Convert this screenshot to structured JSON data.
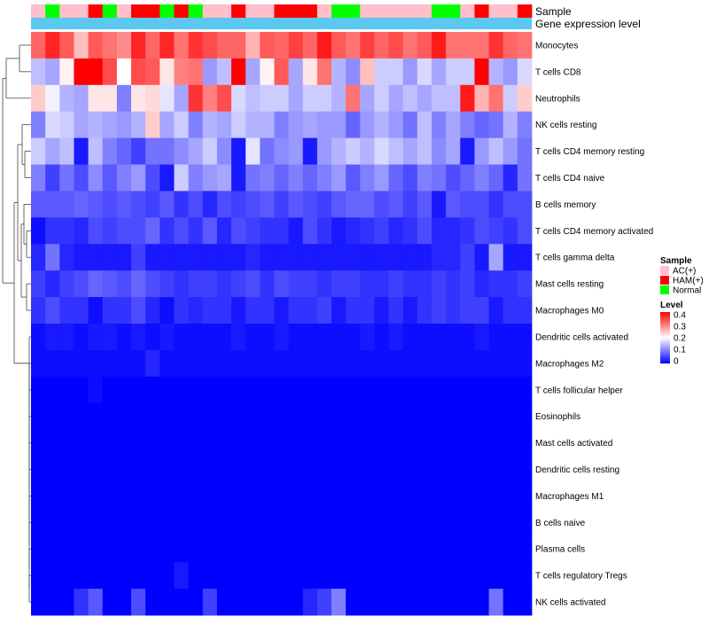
{
  "chart_data": {
    "type": "heatmap",
    "annotation_titles": {
      "sample": "Sample",
      "expression": "Gene expression level"
    },
    "legend": {
      "sample_title": "Sample",
      "sample_categories": [
        {
          "label": "AC(+)",
          "color": "#FFC0CB"
        },
        {
          "label": "HAM(+)",
          "color": "#FF0000"
        },
        {
          "label": "Normal",
          "color": "#00FF00"
        }
      ],
      "level_title": "Level",
      "level_ticks": [
        "0.4",
        "0.3",
        "0.2",
        "0.1",
        "0"
      ],
      "level_range": [
        0,
        0.4
      ]
    },
    "color_scale": {
      "low": "#0000FF",
      "mid": "#FFFFFF",
      "high": "#FF0000",
      "domain": [
        0,
        0.2,
        0.4
      ]
    },
    "expression_bar_color": "#5BC8F0",
    "sample_groups": [
      "AC(+)",
      "Normal",
      "AC(+)",
      "AC(+)",
      "HAM(+)",
      "Normal",
      "AC(+)",
      "HAM(+)",
      "HAM(+)",
      "Normal",
      "HAM(+)",
      "Normal",
      "AC(+)",
      "AC(+)",
      "HAM(+)",
      "AC(+)",
      "AC(+)",
      "HAM(+)",
      "HAM(+)",
      "HAM(+)",
      "AC(+)",
      "Normal",
      "Normal",
      "AC(+)",
      "AC(+)",
      "AC(+)",
      "AC(+)",
      "AC(+)",
      "Normal",
      "Normal",
      "AC(+)",
      "HAM(+)",
      "AC(+)",
      "AC(+)",
      "HAM(+)"
    ],
    "rows": [
      "Monocytes",
      "T cells CD8",
      "Neutrophils",
      "NK cells resting",
      "T cells CD4 memory resting",
      "T cells CD4 naive",
      "B cells memory",
      "T cells CD4 memory activated",
      "T cells gamma delta",
      "Mast cells resting",
      "Macrophages M0",
      "Dendritic cells activated",
      "Macrophages M2",
      "T cells follicular helper",
      "Eosinophils",
      "Mast cells activated",
      "Dendritic cells resting",
      "Macrophages M1",
      "B cells naive",
      "Plasma cells",
      "T cells regulatory  Tregs",
      "NK cells activated"
    ],
    "values": [
      [
        0.32,
        0.37,
        0.33,
        0.25,
        0.33,
        0.31,
        0.29,
        0.37,
        0.32,
        0.37,
        0.31,
        0.36,
        0.34,
        0.32,
        0.32,
        0.26,
        0.33,
        0.32,
        0.35,
        0.32,
        0.38,
        0.33,
        0.31,
        0.35,
        0.32,
        0.34,
        0.31,
        0.33,
        0.38,
        0.31,
        0.31,
        0.31,
        0.36,
        0.32,
        0.31
      ],
      [
        0.15,
        0.13,
        0.21,
        0.4,
        0.4,
        0.34,
        0.2,
        0.34,
        0.33,
        0.22,
        0.3,
        0.31,
        0.12,
        0.15,
        0.4,
        0.13,
        0.21,
        0.33,
        0.13,
        0.22,
        0.31,
        0.14,
        0.11,
        0.25,
        0.16,
        0.16,
        0.12,
        0.17,
        0.13,
        0.16,
        0.16,
        0.4,
        0.14,
        0.12,
        0.17
      ],
      [
        0.24,
        0.19,
        0.14,
        0.13,
        0.22,
        0.22,
        0.1,
        0.22,
        0.23,
        0.18,
        0.13,
        0.36,
        0.3,
        0.34,
        0.17,
        0.15,
        0.16,
        0.16,
        0.13,
        0.16,
        0.16,
        0.14,
        0.31,
        0.13,
        0.16,
        0.13,
        0.15,
        0.13,
        0.15,
        0.15,
        0.38,
        0.26,
        0.31,
        0.16,
        0.24
      ],
      [
        0.1,
        0.17,
        0.16,
        0.13,
        0.14,
        0.13,
        0.12,
        0.14,
        0.24,
        0.13,
        0.16,
        0.1,
        0.14,
        0.13,
        0.16,
        0.14,
        0.14,
        0.1,
        0.12,
        0.13,
        0.12,
        0.12,
        0.08,
        0.12,
        0.14,
        0.12,
        0.09,
        0.15,
        0.1,
        0.13,
        0.1,
        0.08,
        0.09,
        0.14,
        0.1
      ],
      [
        0.16,
        0.13,
        0.15,
        0.02,
        0.15,
        0.1,
        0.08,
        0.05,
        0.09,
        0.09,
        0.11,
        0.13,
        0.16,
        0.11,
        0.02,
        0.18,
        0.09,
        0.11,
        0.12,
        0.02,
        0.12,
        0.14,
        0.16,
        0.14,
        0.17,
        0.15,
        0.13,
        0.15,
        0.11,
        0.13,
        0.02,
        0.12,
        0.15,
        0.12,
        0.09
      ],
      [
        0.1,
        0.05,
        0.09,
        0.06,
        0.11,
        0.07,
        0.1,
        0.12,
        0.06,
        0.02,
        0.16,
        0.1,
        0.12,
        0.13,
        0.02,
        0.09,
        0.1,
        0.08,
        0.1,
        0.08,
        0.1,
        0.12,
        0.07,
        0.1,
        0.12,
        0.08,
        0.06,
        0.1,
        0.09,
        0.06,
        0.08,
        0.1,
        0.08,
        0.03,
        0.09
      ],
      [
        0.07,
        0.07,
        0.07,
        0.08,
        0.07,
        0.06,
        0.07,
        0.06,
        0.05,
        0.07,
        0.04,
        0.06,
        0.03,
        0.06,
        0.05,
        0.06,
        0.07,
        0.05,
        0.07,
        0.06,
        0.05,
        0.07,
        0.08,
        0.08,
        0.06,
        0.07,
        0.05,
        0.07,
        0.02,
        0.07,
        0.06,
        0.06,
        0.04,
        0.06,
        0.06
      ],
      [
        0.01,
        0.04,
        0.04,
        0.03,
        0.06,
        0.05,
        0.06,
        0.06,
        0.08,
        0.04,
        0.06,
        0.04,
        0.07,
        0.03,
        0.06,
        0.05,
        0.04,
        0.04,
        0.02,
        0.06,
        0.04,
        0.02,
        0.03,
        0.04,
        0.05,
        0.03,
        0.04,
        0.06,
        0.03,
        0.03,
        0.04,
        0.06,
        0.05,
        0.04,
        0.06
      ],
      [
        0.03,
        0.09,
        0.03,
        0.02,
        0.02,
        0.02,
        0.02,
        0.05,
        0.02,
        0.02,
        0.02,
        0.02,
        0.02,
        0.02,
        0.02,
        0.03,
        0.02,
        0.02,
        0.02,
        0.02,
        0.02,
        0.02,
        0.02,
        0.02,
        0.02,
        0.02,
        0.02,
        0.02,
        0.03,
        0.03,
        0.05,
        0.02,
        0.13,
        0.02,
        0.02
      ],
      [
        0.05,
        0.03,
        0.05,
        0.06,
        0.08,
        0.07,
        0.06,
        0.08,
        0.06,
        0.05,
        0.04,
        0.05,
        0.05,
        0.04,
        0.05,
        0.06,
        0.04,
        0.06,
        0.05,
        0.05,
        0.04,
        0.05,
        0.05,
        0.04,
        0.04,
        0.05,
        0.04,
        0.04,
        0.05,
        0.04,
        0.05,
        0.03,
        0.04,
        0.04,
        0.05
      ],
      [
        0.04,
        0.06,
        0.04,
        0.04,
        0.01,
        0.04,
        0.04,
        0.06,
        0.03,
        0.01,
        0.04,
        0.03,
        0.04,
        0.04,
        0.02,
        0.04,
        0.04,
        0.02,
        0.04,
        0.04,
        0.05,
        0.02,
        0.04,
        0.04,
        0.02,
        0.04,
        0.02,
        0.04,
        0.05,
        0.04,
        0.05,
        0.05,
        0.02,
        0.04,
        0.04
      ],
      [
        0.01,
        0.02,
        0.02,
        0.01,
        0.02,
        0.02,
        0.01,
        0.02,
        0.01,
        0.02,
        0.01,
        0.01,
        0.01,
        0.01,
        0.02,
        0.01,
        0.01,
        0.02,
        0.01,
        0.01,
        0.01,
        0.01,
        0.01,
        0.02,
        0.01,
        0.02,
        0.01,
        0.01,
        0.01,
        0.01,
        0.01,
        0.02,
        0.01,
        0.01,
        0.01
      ],
      [
        0.01,
        0.01,
        0.01,
        0.01,
        0.01,
        0.01,
        0.01,
        0.01,
        0.03,
        0.01,
        0.01,
        0.01,
        0.01,
        0.01,
        0.01,
        0.01,
        0.01,
        0.01,
        0.01,
        0.01,
        0.01,
        0.01,
        0.01,
        0.01,
        0.01,
        0.01,
        0.01,
        0.01,
        0.01,
        0.01,
        0.01,
        0.01,
        0.01,
        0.01,
        0.01
      ],
      [
        0.0,
        0.0,
        0.0,
        0.0,
        0.01,
        0.0,
        0.0,
        0.0,
        0.0,
        0.0,
        0.0,
        0.0,
        0.0,
        0.0,
        0.0,
        0.0,
        0.0,
        0.0,
        0.0,
        0.0,
        0.0,
        0.0,
        0.0,
        0.0,
        0.0,
        0.0,
        0.0,
        0.0,
        0.0,
        0.0,
        0.0,
        0.0,
        0.0,
        0.0,
        0.0
      ],
      [
        0.0,
        0.0,
        0.0,
        0.0,
        0.0,
        0.0,
        0.0,
        0.0,
        0.0,
        0.0,
        0.0,
        0.0,
        0.0,
        0.0,
        0.0,
        0.0,
        0.0,
        0.0,
        0.0,
        0.0,
        0.0,
        0.0,
        0.0,
        0.0,
        0.0,
        0.0,
        0.0,
        0.0,
        0.0,
        0.0,
        0.0,
        0.0,
        0.0,
        0.0,
        0.0
      ],
      [
        0.0,
        0.0,
        0.0,
        0.0,
        0.0,
        0.0,
        0.0,
        0.0,
        0.0,
        0.0,
        0.0,
        0.0,
        0.0,
        0.0,
        0.0,
        0.0,
        0.0,
        0.0,
        0.0,
        0.0,
        0.0,
        0.0,
        0.0,
        0.0,
        0.0,
        0.0,
        0.0,
        0.0,
        0.0,
        0.0,
        0.0,
        0.0,
        0.0,
        0.0,
        0.0
      ],
      [
        0.0,
        0.0,
        0.0,
        0.0,
        0.0,
        0.0,
        0.0,
        0.0,
        0.0,
        0.0,
        0.0,
        0.0,
        0.0,
        0.0,
        0.0,
        0.0,
        0.0,
        0.0,
        0.0,
        0.0,
        0.0,
        0.0,
        0.0,
        0.0,
        0.0,
        0.0,
        0.0,
        0.0,
        0.0,
        0.0,
        0.0,
        0.0,
        0.0,
        0.0,
        0.0
      ],
      [
        0.0,
        0.0,
        0.0,
        0.0,
        0.0,
        0.0,
        0.0,
        0.0,
        0.0,
        0.0,
        0.0,
        0.0,
        0.0,
        0.0,
        0.0,
        0.0,
        0.0,
        0.0,
        0.0,
        0.0,
        0.0,
        0.0,
        0.0,
        0.0,
        0.0,
        0.0,
        0.0,
        0.0,
        0.0,
        0.0,
        0.0,
        0.0,
        0.0,
        0.0,
        0.0
      ],
      [
        0.0,
        0.0,
        0.0,
        0.0,
        0.0,
        0.0,
        0.0,
        0.0,
        0.0,
        0.0,
        0.0,
        0.0,
        0.0,
        0.0,
        0.0,
        0.0,
        0.0,
        0.0,
        0.0,
        0.0,
        0.0,
        0.0,
        0.0,
        0.0,
        0.0,
        0.0,
        0.0,
        0.0,
        0.0,
        0.0,
        0.0,
        0.0,
        0.0,
        0.0,
        0.0
      ],
      [
        0.0,
        0.0,
        0.0,
        0.0,
        0.0,
        0.0,
        0.0,
        0.0,
        0.0,
        0.0,
        0.0,
        0.0,
        0.0,
        0.0,
        0.0,
        0.0,
        0.0,
        0.0,
        0.0,
        0.0,
        0.0,
        0.0,
        0.0,
        0.0,
        0.0,
        0.0,
        0.0,
        0.0,
        0.0,
        0.0,
        0.0,
        0.0,
        0.0,
        0.0,
        0.0
      ],
      [
        0.0,
        0.0,
        0.0,
        0.0,
        0.0,
        0.0,
        0.0,
        0.0,
        0.0,
        0.0,
        0.02,
        0.0,
        0.0,
        0.0,
        0.0,
        0.0,
        0.0,
        0.0,
        0.0,
        0.0,
        0.0,
        0.0,
        0.0,
        0.0,
        0.0,
        0.0,
        0.0,
        0.0,
        0.0,
        0.0,
        0.0,
        0.0,
        0.0,
        0.0,
        0.0
      ],
      [
        0.0,
        0.0,
        0.0,
        0.04,
        0.07,
        0.0,
        0.0,
        0.06,
        0.0,
        0.0,
        0.0,
        0.0,
        0.05,
        0.0,
        0.0,
        0.0,
        0.0,
        0.0,
        0.0,
        0.03,
        0.05,
        0.1,
        0.0,
        0.0,
        0.0,
        0.0,
        0.0,
        0.0,
        0.0,
        0.0,
        0.0,
        0.0,
        0.09,
        0.0,
        0.0
      ]
    ]
  }
}
